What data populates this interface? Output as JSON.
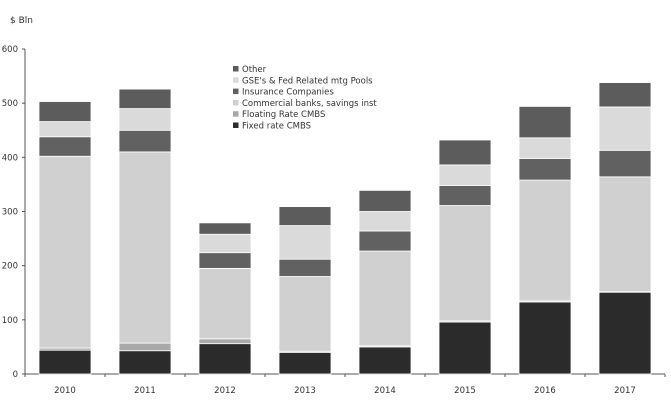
{
  "chart_data": {
    "type": "bar",
    "stacked": true,
    "title": "",
    "ylabel": "$ Bln",
    "xlabel": "",
    "ylim": [
      0,
      600
    ],
    "yticks": [
      0,
      100,
      200,
      300,
      400,
      500,
      600
    ],
    "grid": false,
    "legend_position": "top-center",
    "categories": [
      "2010",
      "2011",
      "2012",
      "2013",
      "2014",
      "2015",
      "2016",
      "2017"
    ],
    "series": [
      {
        "name": "Fixed rate CMBS",
        "color": "#2b2b2b",
        "values": [
          44,
          43,
          56,
          40,
          50,
          96,
          133,
          151
        ]
      },
      {
        "name": "Floating Rate CMBS",
        "color": "#a9a9a9",
        "values": [
          4,
          14,
          9,
          2,
          2,
          2,
          2,
          1
        ]
      },
      {
        "name": "Commercial banks, savings inst",
        "color": "#d0d0d0",
        "values": [
          354,
          353,
          130,
          138,
          175,
          213,
          223,
          212
        ]
      },
      {
        "name": "Insurance Companies",
        "color": "#616161",
        "values": [
          36,
          40,
          29,
          32,
          37,
          37,
          40,
          49
        ]
      },
      {
        "name": "GSE's & Fed Related mtg Pools",
        "color": "#dadada",
        "values": [
          28,
          40,
          34,
          62,
          36,
          38,
          38,
          80
        ]
      },
      {
        "name": "Other",
        "color": "#5c5c5c",
        "values": [
          37,
          36,
          21,
          35,
          39,
          46,
          58,
          45
        ]
      }
    ]
  }
}
